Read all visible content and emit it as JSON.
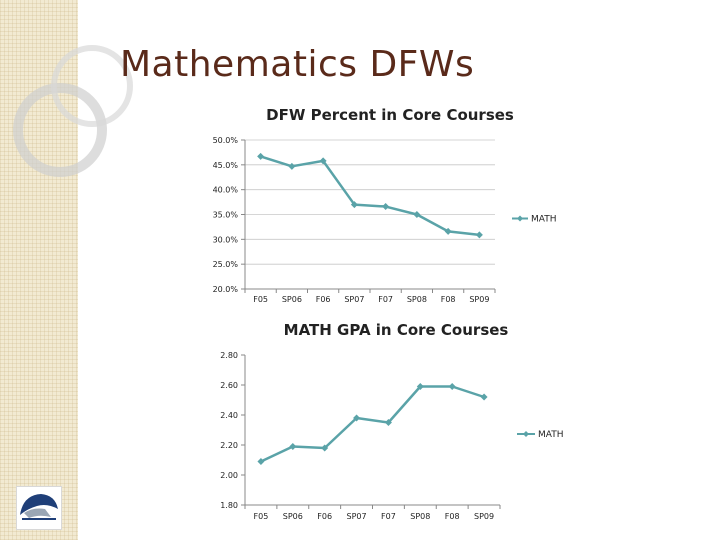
{
  "slide": {
    "title": "Mathematics DFWs"
  },
  "colors": {
    "series": "#5aa3a8",
    "title": "#5a2a1a",
    "axis": "#888888",
    "grid": "#c8c8c8"
  },
  "chart_data": [
    {
      "type": "line",
      "title": "DFW Percent in Core Courses",
      "categories": [
        "F05",
        "SP06",
        "F06",
        "SP07",
        "F07",
        "SP08",
        "F08",
        "SP09"
      ],
      "series": [
        {
          "name": "MATH",
          "values": [
            46.7,
            44.7,
            45.8,
            37.0,
            36.6,
            35.0,
            31.6,
            30.9
          ]
        }
      ],
      "ylim": [
        20,
        50
      ],
      "yticks": [
        20,
        25,
        30,
        35,
        40,
        45,
        50
      ],
      "ytick_labels": [
        "20.0%",
        "25.0%",
        "30.0%",
        "35.0%",
        "40.0%",
        "45.0%",
        "50.0%"
      ],
      "xlabel": "",
      "ylabel": "",
      "grid": true,
      "legend": "right"
    },
    {
      "type": "line",
      "title": "MATH GPA in Core Courses",
      "categories": [
        "F05",
        "SP06",
        "F06",
        "SP07",
        "F07",
        "SP08",
        "F08",
        "SP09"
      ],
      "series": [
        {
          "name": "MATH",
          "values": [
            2.09,
            2.19,
            2.18,
            2.38,
            2.35,
            2.59,
            2.59,
            2.52
          ]
        }
      ],
      "ylim": [
        1.8,
        2.8
      ],
      "yticks": [
        1.8,
        2.0,
        2.2,
        2.4,
        2.6,
        2.8
      ],
      "ytick_labels": [
        "1.80",
        "2.00",
        "2.20",
        "2.40",
        "2.60",
        "2.80"
      ],
      "xlabel": "",
      "ylabel": "",
      "grid": false,
      "legend": "right"
    }
  ]
}
